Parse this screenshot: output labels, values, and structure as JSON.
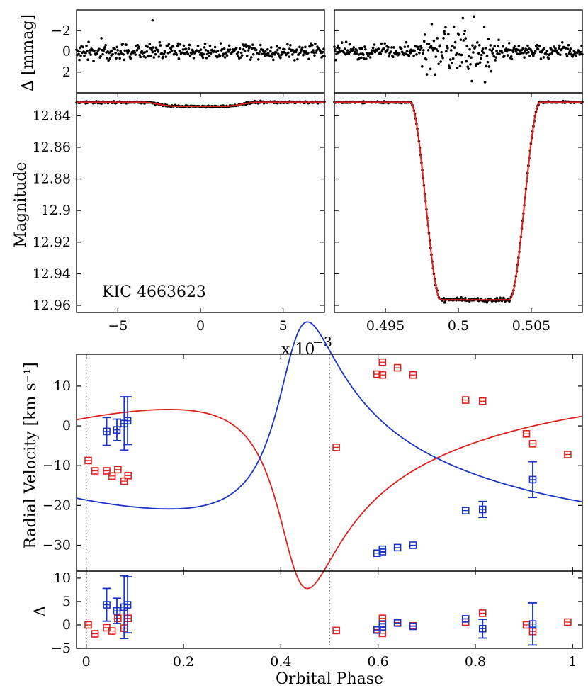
{
  "chart_data": [
    {
      "panel": "lightcurve-residuals-left",
      "type": "scatter",
      "ylabel": "Δ [mmag]",
      "xlim": [
        -0.0075,
        0.0075
      ],
      "ylim": [
        4,
        -4
      ],
      "yticks": [
        {
          "v": -2,
          "label": "−2"
        },
        {
          "v": 0,
          "label": "0"
        },
        {
          "v": 2,
          "label": "2"
        }
      ],
      "points_note": "residuals scattered around 0 with rms ~0.5 mmag"
    },
    {
      "panel": "lightcurve-residuals-right",
      "type": "scatter",
      "xlim": [
        0.4915,
        0.5085
      ],
      "ylim": [
        4,
        -4
      ],
      "points_note": "residuals ~0.5 mmag rms, larger (±2.5 mmag) during eclipse 0.497–0.503"
    },
    {
      "panel": "lightcurve-left",
      "type": "line",
      "title": "KIC 4663623",
      "ylabel": "Magnitude",
      "xlabel": "x 10",
      "xlabel_exp": "−3",
      "xlim": [
        -0.0075,
        0.0075
      ],
      "ylim": [
        12.9645,
        12.8255
      ],
      "xticks": [
        {
          "v": -0.005,
          "label": "−5"
        },
        {
          "v": 0,
          "label": "0"
        },
        {
          "v": 0.005,
          "label": "5"
        }
      ],
      "yticks": [
        {
          "v": 12.84,
          "label": "12.84"
        },
        {
          "v": 12.86,
          "label": "12.86"
        },
        {
          "v": 12.88,
          "label": "12.88"
        },
        {
          "v": 12.9,
          "label": "12.9"
        },
        {
          "v": 12.92,
          "label": "12.92"
        },
        {
          "v": 12.94,
          "label": "12.94"
        },
        {
          "v": 12.96,
          "label": "12.96"
        }
      ],
      "model": {
        "baseline": 12.8315,
        "depth": 0.0025,
        "ingress_start": -0.0035,
        "ingress_end": -0.0015
      }
    },
    {
      "panel": "lightcurve-right",
      "type": "line",
      "xlim": [
        0.4915,
        0.5085
      ],
      "ylim": [
        12.9645,
        12.8255
      ],
      "xticks": [
        {
          "v": 0.495,
          "label": "0.495"
        },
        {
          "v": 0.5,
          "label": "0.5"
        },
        {
          "v": 0.505,
          "label": "0.505"
        }
      ],
      "model": {
        "baseline": 12.8315,
        "bottom": 12.9565,
        "ingress_start": 0.4967,
        "ingress_end": 0.4988,
        "egress_start": 0.5035,
        "egress_end": 0.5056
      }
    },
    {
      "panel": "radial-velocity",
      "type": "line",
      "ylabel": "Radial Velocity [km s⁻¹]",
      "xlim": [
        -0.02,
        1.02
      ],
      "ylim": [
        -36.5,
        18
      ],
      "yticks": [
        {
          "v": 10,
          "label": "10"
        },
        {
          "v": 0,
          "label": "0"
        },
        {
          "v": -10,
          "label": "−10"
        },
        {
          "v": -20,
          "label": "−20"
        },
        {
          "v": -30,
          "label": "−30"
        }
      ],
      "series": [
        {
          "name": "primary",
          "color": "#e0201c",
          "points": [
            [
              0.004,
              -8.7
            ],
            [
              0.018,
              -11.3
            ],
            [
              0.042,
              -11.3
            ],
            [
              0.053,
              -12.6
            ],
            [
              0.065,
              -11.0
            ],
            [
              0.078,
              -13.9
            ],
            [
              0.086,
              -12.5
            ],
            [
              0.514,
              -5.4
            ],
            [
              0.598,
              13.0
            ],
            [
              0.609,
              16.0
            ],
            [
              0.609,
              12.8
            ],
            [
              0.64,
              14.6
            ],
            [
              0.672,
              12.8
            ],
            [
              0.78,
              6.5
            ],
            [
              0.815,
              6.2
            ],
            [
              0.905,
              -2.0
            ],
            [
              0.918,
              -4.5
            ],
            [
              0.99,
              -7.2
            ]
          ]
        },
        {
          "name": "secondary",
          "color": "#1a35c4",
          "points": [
            [
              0.042,
              -1.4,
              3.5
            ],
            [
              0.063,
              -1.0,
              2.7
            ],
            [
              0.078,
              0.6,
              6.7
            ],
            [
              0.085,
              1.3,
              6.0
            ],
            [
              0.598,
              -32.0,
              0
            ],
            [
              0.609,
              -31.0,
              0
            ],
            [
              0.609,
              -31.6,
              0
            ],
            [
              0.64,
              -30.6,
              0
            ],
            [
              0.672,
              -30.0,
              0
            ],
            [
              0.78,
              -21.3,
              0
            ],
            [
              0.815,
              -21.0,
              2.0
            ],
            [
              0.918,
              -13.5,
              4.5
            ]
          ]
        }
      ],
      "vlines": [
        0.0,
        0.5
      ]
    },
    {
      "panel": "rv-residuals",
      "type": "scatter",
      "ylabel": "Δ",
      "xlabel": "Orbital Phase",
      "xlim": [
        -0.02,
        1.02
      ],
      "ylim": [
        -5,
        11.5
      ],
      "xticks": [
        {
          "v": 0,
          "label": "0"
        },
        {
          "v": 0.2,
          "label": "0.2"
        },
        {
          "v": 0.4,
          "label": "0.4"
        },
        {
          "v": 0.6,
          "label": "0.6"
        },
        {
          "v": 0.8,
          "label": "0.8"
        },
        {
          "v": 1,
          "label": "1"
        }
      ],
      "yticks": [
        {
          "v": 10,
          "label": "10"
        },
        {
          "v": 5,
          "label": "5"
        },
        {
          "v": 0,
          "label": "0"
        },
        {
          "v": -5,
          "label": "−5"
        }
      ],
      "series": [
        {
          "name": "primary",
          "color": "#e0201c",
          "points": [
            [
              0.004,
              0.0
            ],
            [
              0.018,
              -1.9
            ],
            [
              0.042,
              -0.6
            ],
            [
              0.053,
              -1.3
            ],
            [
              0.065,
              1.4
            ],
            [
              0.078,
              -0.7
            ],
            [
              0.086,
              1.4
            ],
            [
              0.514,
              -1.2
            ],
            [
              0.598,
              -1.0
            ],
            [
              0.609,
              1.4
            ],
            [
              0.609,
              -1.8
            ],
            [
              0.64,
              0.5
            ],
            [
              0.672,
              -0.2
            ],
            [
              0.78,
              0.6
            ],
            [
              0.815,
              2.5
            ],
            [
              0.905,
              0.0
            ],
            [
              0.918,
              -1.4
            ],
            [
              0.99,
              0.6
            ]
          ]
        },
        {
          "name": "secondary",
          "color": "#1a35c4",
          "points": [
            [
              0.042,
              4.3,
              3.5
            ],
            [
              0.063,
              3.0,
              2.7
            ],
            [
              0.078,
              3.8,
              6.7
            ],
            [
              0.085,
              4.3,
              6.0
            ],
            [
              0.598,
              -1.1,
              0
            ],
            [
              0.609,
              0.2,
              0
            ],
            [
              0.609,
              -0.4,
              0
            ],
            [
              0.64,
              0.4,
              0
            ],
            [
              0.672,
              -0.3,
              0
            ],
            [
              0.78,
              1.3,
              0
            ],
            [
              0.815,
              -0.8,
              2.0
            ],
            [
              0.918,
              0.2,
              4.5
            ]
          ]
        }
      ],
      "vlines": [
        0.0,
        0.5
      ]
    }
  ]
}
